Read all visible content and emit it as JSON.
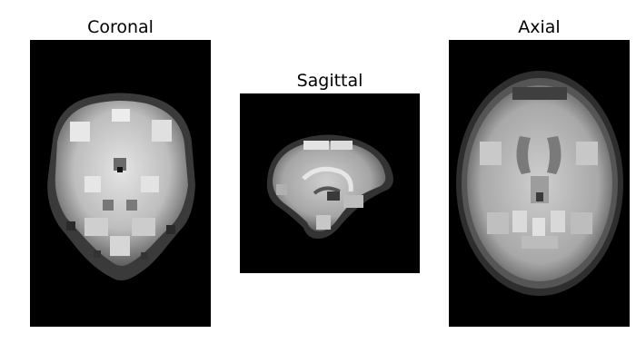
{
  "panels": {
    "coronal": {
      "title": "Coronal"
    },
    "sagittal": {
      "title": "Sagittal"
    },
    "axial": {
      "title": "Axial"
    }
  },
  "colors": {
    "background": "#ffffff",
    "panel_background": "#000000",
    "tissue_light": "#d9d9d9",
    "tissue_mid": "#9a9a9a",
    "tissue_dark": "#4a4a4a"
  }
}
